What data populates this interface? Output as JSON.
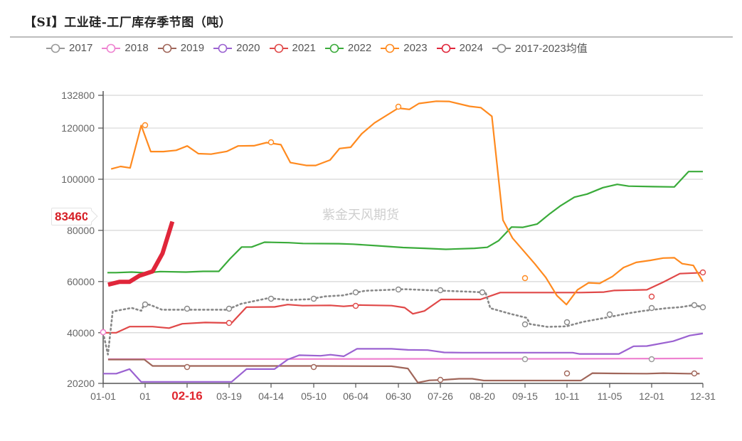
{
  "title": "【SI】工业硅-工厂库存季节图（吨）",
  "watermark": "紫金天风期货",
  "current_value_tag": "83460",
  "legend": [
    {
      "name": "2017",
      "color": "#999999"
    },
    {
      "name": "2018",
      "color": "#ee82d0"
    },
    {
      "name": "2019",
      "color": "#a0665a"
    },
    {
      "name": "2020",
      "color": "#9b62d1"
    },
    {
      "name": "2021",
      "color": "#e04848"
    },
    {
      "name": "2022",
      "color": "#3aab3a"
    },
    {
      "name": "2023",
      "color": "#ff8a1f"
    },
    {
      "name": "2024",
      "color": "#e0263a"
    },
    {
      "name": "2017-2023均值",
      "color": "#888888"
    }
  ],
  "chart_data": {
    "type": "line",
    "title": "【SI】工业硅-工厂库存季节图（吨）",
    "xlabel": "",
    "ylabel": "",
    "ylim": [
      20200,
      132800
    ],
    "y_ticks": [
      20200,
      40000,
      60000,
      80000,
      100000,
      120000,
      132800
    ],
    "x_ticks": [
      "01-01",
      "01",
      "02-16",
      "03-19",
      "04-14",
      "05-10",
      "06-04",
      "06-30",
      "07-26",
      "08-20",
      "09-15",
      "10-11",
      "11-05",
      "12-01",
      "12-31"
    ],
    "highlighted_x_tick": "02-16",
    "grid": true,
    "legend_position": "top",
    "x_domain": "day-of-year (01-01 .. 12-31)",
    "series": [
      {
        "name": "2018",
        "color": "#ee82d0",
        "points": [
          [
            3,
            29700
          ],
          [
            100,
            29700
          ],
          [
            200,
            29800
          ],
          [
            260,
            29800
          ],
          [
            335,
            29900
          ],
          [
            364,
            30000
          ]
        ]
      },
      {
        "name": "2019",
        "color": "#a0665a",
        "points": [
          [
            3,
            29500
          ],
          [
            25,
            29500
          ],
          [
            30,
            27000
          ],
          [
            46,
            27000
          ],
          [
            130,
            27000
          ],
          [
            175,
            26900
          ],
          [
            185,
            26000
          ],
          [
            191,
            20500
          ],
          [
            198,
            21400
          ],
          [
            207,
            21600
          ],
          [
            216,
            22000
          ],
          [
            224,
            22000
          ],
          [
            231,
            21300
          ],
          [
            290,
            21300
          ],
          [
            297,
            24200
          ],
          [
            310,
            24100
          ],
          [
            330,
            24000
          ],
          [
            340,
            24200
          ],
          [
            355,
            24000
          ],
          [
            362,
            24000
          ]
        ]
      },
      {
        "name": "2020",
        "color": "#9b62d1",
        "points": [
          [
            0,
            24000
          ],
          [
            8,
            24000
          ],
          [
            16,
            25800
          ],
          [
            23,
            20800
          ],
          [
            60,
            20800
          ],
          [
            78,
            20800
          ],
          [
            87,
            25800
          ],
          [
            104,
            25800
          ],
          [
            112,
            29500
          ],
          [
            119,
            31200
          ],
          [
            132,
            31000
          ],
          [
            138,
            31400
          ],
          [
            146,
            30800
          ],
          [
            154,
            33700
          ],
          [
            175,
            33700
          ],
          [
            185,
            33300
          ],
          [
            197,
            33200
          ],
          [
            207,
            32300
          ],
          [
            218,
            32200
          ],
          [
            250,
            32200
          ],
          [
            285,
            32200
          ],
          [
            289,
            31700
          ],
          [
            313,
            31700
          ],
          [
            322,
            34700
          ],
          [
            330,
            34800
          ],
          [
            346,
            36700
          ],
          [
            356,
            38900
          ],
          [
            364,
            39700
          ]
        ]
      },
      {
        "name": "2021",
        "color": "#e04848",
        "points": [
          [
            0,
            40000
          ],
          [
            8,
            40000
          ],
          [
            16,
            42400
          ],
          [
            30,
            42400
          ],
          [
            40,
            41800
          ],
          [
            48,
            43500
          ],
          [
            62,
            44000
          ],
          [
            78,
            43800
          ],
          [
            87,
            50000
          ],
          [
            104,
            50100
          ],
          [
            112,
            51000
          ],
          [
            121,
            50600
          ],
          [
            138,
            50700
          ],
          [
            146,
            50300
          ],
          [
            156,
            50800
          ],
          [
            175,
            50600
          ],
          [
            183,
            49800
          ],
          [
            188,
            47400
          ],
          [
            195,
            48500
          ],
          [
            205,
            53000
          ],
          [
            229,
            53000
          ],
          [
            241,
            55700
          ],
          [
            290,
            55700
          ],
          [
            304,
            55900
          ],
          [
            310,
            56500
          ],
          [
            330,
            56800
          ],
          [
            340,
            59800
          ],
          [
            350,
            63100
          ],
          [
            364,
            63500
          ]
        ]
      },
      {
        "name": "2022",
        "color": "#3aab3a",
        "points": [
          [
            3,
            63500
          ],
          [
            9,
            63500
          ],
          [
            20,
            63700
          ],
          [
            30,
            63400
          ],
          [
            40,
            63900
          ],
          [
            58,
            63700
          ],
          [
            70,
            64000
          ],
          [
            81,
            64000
          ],
          [
            89,
            69000
          ],
          [
            97,
            73500
          ],
          [
            104,
            73500
          ],
          [
            113,
            75400
          ],
          [
            130,
            75200
          ],
          [
            140,
            74900
          ],
          [
            165,
            74800
          ],
          [
            175,
            74600
          ],
          [
            192,
            74000
          ],
          [
            210,
            73300
          ],
          [
            225,
            73000
          ],
          [
            240,
            72600
          ],
          [
            260,
            73000
          ],
          [
            269,
            73400
          ],
          [
            277,
            76000
          ],
          [
            286,
            81300
          ],
          [
            294,
            81200
          ],
          [
            304,
            82500
          ],
          [
            313,
            86600
          ],
          [
            320,
            89500
          ],
          [
            330,
            93000
          ],
          [
            339,
            94200
          ],
          [
            350,
            96700
          ],
          [
            360,
            98000
          ],
          [
            368,
            97300
          ],
          [
            385,
            97100
          ],
          [
            400,
            97000
          ],
          [
            410,
            103000
          ],
          [
            420,
            103000
          ]
        ]
      },
      {
        "name": "2023",
        "color": "#ff8a1f",
        "points": [
          [
            5,
            104000
          ],
          [
            11,
            105000
          ],
          [
            17,
            104400
          ],
          [
            24,
            121000
          ],
          [
            30,
            110800
          ],
          [
            38,
            110800
          ],
          [
            46,
            111300
          ],
          [
            53,
            113000
          ],
          [
            60,
            110000
          ],
          [
            68,
            109800
          ],
          [
            78,
            110900
          ],
          [
            85,
            113000
          ],
          [
            95,
            113100
          ],
          [
            103,
            114300
          ],
          [
            112,
            113500
          ],
          [
            118,
            106500
          ],
          [
            128,
            105400
          ],
          [
            134,
            105400
          ],
          [
            143,
            107500
          ],
          [
            149,
            112000
          ],
          [
            156,
            112500
          ],
          [
            163,
            117800
          ],
          [
            171,
            122000
          ],
          [
            186,
            127800
          ],
          [
            193,
            127300
          ],
          [
            199,
            129600
          ],
          [
            210,
            130500
          ],
          [
            218,
            130400
          ],
          [
            231,
            128500
          ],
          [
            238,
            128000
          ],
          [
            245,
            124600
          ],
          [
            252,
            84000
          ],
          [
            258,
            77000
          ],
          [
            265,
            72000
          ],
          [
            272,
            67000
          ],
          [
            279,
            61600
          ],
          [
            286,
            54500
          ],
          [
            292,
            51000
          ],
          [
            299,
            56800
          ],
          [
            306,
            59500
          ],
          [
            313,
            59300
          ],
          [
            321,
            62000
          ],
          [
            328,
            65500
          ],
          [
            336,
            67500
          ],
          [
            345,
            68300
          ],
          [
            353,
            69200
          ],
          [
            360,
            69300
          ],
          [
            365,
            67000
          ],
          [
            372,
            66300
          ],
          [
            378,
            60000
          ]
        ]
      },
      {
        "name": "2024",
        "color": "#e0263a",
        "points": [
          [
            3,
            58800
          ],
          [
            10,
            59900
          ],
          [
            16,
            59900
          ],
          [
            22,
            62300
          ],
          [
            30,
            64000
          ],
          [
            36,
            71000
          ],
          [
            42,
            83460
          ]
        ]
      },
      {
        "name": "2017-2023均值",
        "color": "#888888",
        "style": "dotted",
        "points": [
          [
            0,
            40000
          ],
          [
            3,
            31500
          ],
          [
            6,
            48300
          ],
          [
            18,
            49700
          ],
          [
            24,
            48600
          ],
          [
            26,
            51300
          ],
          [
            30,
            50800
          ],
          [
            37,
            49000
          ],
          [
            46,
            49000
          ],
          [
            78,
            49000
          ],
          [
            87,
            51300
          ],
          [
            104,
            53500
          ],
          [
            117,
            52800
          ],
          [
            130,
            53100
          ],
          [
            140,
            54200
          ],
          [
            151,
            54600
          ],
          [
            165,
            56400
          ],
          [
            190,
            57000
          ],
          [
            210,
            56500
          ],
          [
            232,
            56000
          ],
          [
            241,
            55700
          ],
          [
            244,
            49600
          ],
          [
            256,
            47500
          ],
          [
            267,
            45800
          ],
          [
            269,
            43400
          ],
          [
            280,
            42300
          ],
          [
            292,
            42500
          ],
          [
            302,
            44200
          ],
          [
            318,
            46000
          ],
          [
            330,
            47500
          ],
          [
            340,
            48500
          ],
          [
            355,
            49600
          ],
          [
            364,
            50000
          ],
          [
            372,
            50800
          ],
          [
            378,
            50000
          ]
        ]
      }
    ]
  }
}
